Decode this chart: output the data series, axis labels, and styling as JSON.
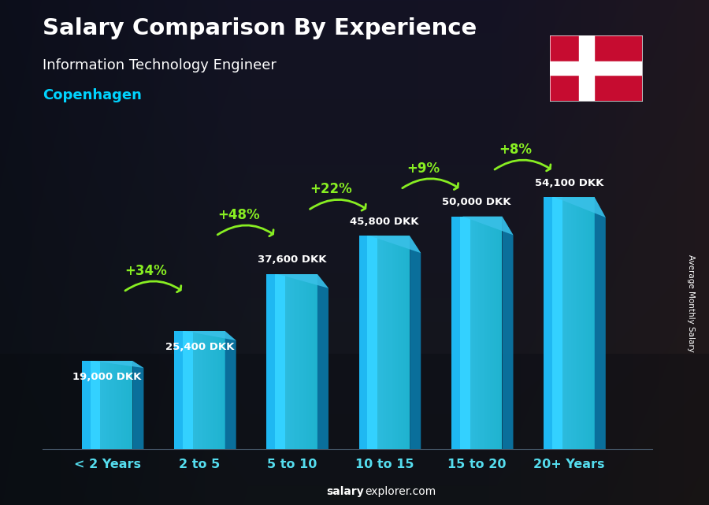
{
  "title": "Salary Comparison By Experience",
  "subtitle": "Information Technology Engineer",
  "city": "Copenhagen",
  "categories": [
    "< 2 Years",
    "2 to 5",
    "5 to 10",
    "10 to 15",
    "15 to 20",
    "20+ Years"
  ],
  "values": [
    19000,
    25400,
    37600,
    45800,
    50000,
    54100
  ],
  "labels": [
    "19,000 DKK",
    "25,400 DKK",
    "37,600 DKK",
    "45,800 DKK",
    "50,000 DKK",
    "54,100 DKK"
  ],
  "pct_changes": [
    "+34%",
    "+48%",
    "+22%",
    "+9%",
    "+8%"
  ],
  "bar_face_color": "#29c4f6",
  "bar_side_color": "#0a7aaa",
  "bar_top_color": "#4dd8ff",
  "bar_highlight_color": "#7eeeff",
  "background_dark": "#1a2030",
  "title_color": "#ffffff",
  "subtitle_color": "#ffffff",
  "city_color": "#00d4ff",
  "label_color": "#ffffff",
  "pct_color": "#88ee22",
  "xlabel_color": "#55ddee",
  "ylabel_text": "Average Monthly Salary",
  "watermark_bold": "salary",
  "watermark_regular": "explorer.com",
  "ylim": [
    0,
    65000
  ],
  "figsize": [
    9.0,
    6.41
  ],
  "dpi": 100,
  "bar_width": 0.55,
  "bar_depth": 0.12,
  "arrow_y_positions": [
    35000,
    47000,
    52500,
    57000,
    61000
  ],
  "label_y_offsets": [
    -4500,
    -4500,
    2000,
    2000,
    2000,
    2000
  ]
}
